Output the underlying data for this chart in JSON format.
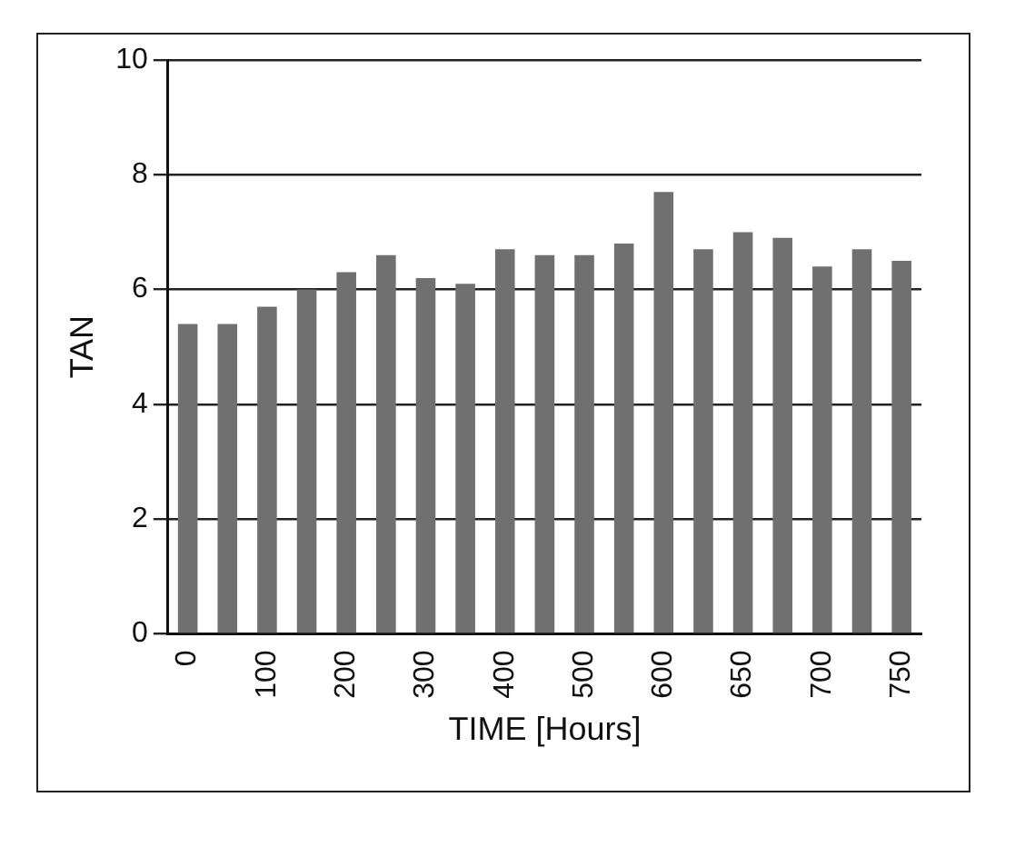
{
  "chart_data": {
    "type": "bar",
    "xlabel": "TIME [Hours]",
    "ylabel": "TAN",
    "categories": [
      "0",
      null,
      "100",
      null,
      "200",
      null,
      "300",
      null,
      "400",
      null,
      "500",
      null,
      "600",
      null,
      "650",
      null,
      "700",
      null,
      "750"
    ],
    "values": [
      5.4,
      5.4,
      5.7,
      6.0,
      6.3,
      6.6,
      6.2,
      6.1,
      6.7,
      6.6,
      6.6,
      6.8,
      7.7,
      6.7,
      7.0,
      6.9,
      6.4,
      6.7,
      6.5
    ],
    "color": "#707070",
    "ylim": [
      0,
      10
    ],
    "yticks": [
      0,
      2,
      4,
      6,
      8,
      10
    ],
    "grid": "y",
    "legend": false
  }
}
